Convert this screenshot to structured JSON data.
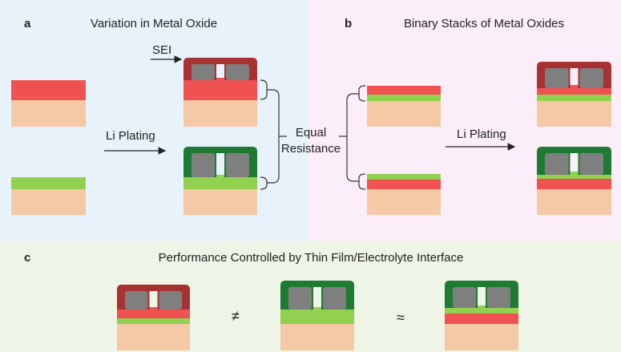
{
  "panel_a": {
    "label": "a",
    "title": "Variation in Metal Oxide",
    "sei_label": "SEI",
    "arrow_label": "Li Plating",
    "bracket_label": [
      "Equal",
      "Resistance"
    ]
  },
  "panel_b": {
    "label": "b",
    "title": "Binary Stacks of Metal Oxides",
    "arrow_label": "Li Plating"
  },
  "panel_c": {
    "label": "c",
    "title": "Performance Controlled by Thin Film/Electrolyte Interface",
    "symbols": [
      "≠",
      "≈"
    ]
  }
}
